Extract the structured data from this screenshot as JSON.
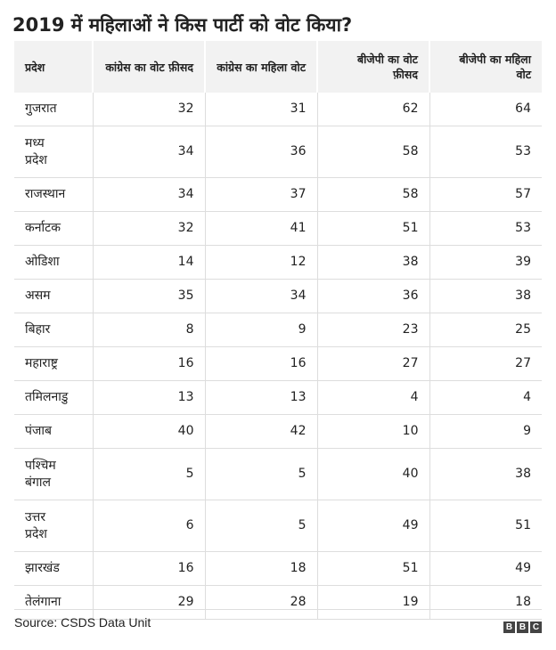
{
  "title": "2019 में महिलाओं ने किस पार्टी को वोट किया?",
  "source": "Source: CSDS Data Unit",
  "logo": [
    "B",
    "B",
    "C"
  ],
  "chart_data": {
    "type": "table",
    "columns": [
      "प्रदेश",
      "कांग्रेस का वोट फ़ीसद",
      "कांग्रेस का महिला वोट",
      "बीजेपी का वोट फ़ीसद",
      "बीजेपी का महिला वोट"
    ],
    "rows": [
      {
        "state": "गुजरात",
        "cols": [
          "32",
          "31",
          "62",
          "64"
        ]
      },
      {
        "state": "मध्य प्रदेश",
        "cols": [
          "34",
          "36",
          "58",
          "53"
        ]
      },
      {
        "state": "राजस्थान",
        "cols": [
          "34",
          "37",
          "58",
          "57"
        ]
      },
      {
        "state": "कर्नाटक",
        "cols": [
          "32",
          "41",
          "51",
          "53"
        ]
      },
      {
        "state": "ओडिशा",
        "cols": [
          "14",
          "12",
          "38",
          "39"
        ]
      },
      {
        "state": "असम",
        "cols": [
          "35",
          "34",
          "36",
          "38"
        ]
      },
      {
        "state": "बिहार",
        "cols": [
          "8",
          "9",
          "23",
          "25"
        ]
      },
      {
        "state": "महाराष्ट्र",
        "cols": [
          "16",
          "16",
          "27",
          "27"
        ]
      },
      {
        "state": "तमिलनाडु",
        "cols": [
          "13",
          "13",
          "4",
          "4"
        ]
      },
      {
        "state": "पंजाब",
        "cols": [
          "40",
          "42",
          "10",
          "9"
        ]
      },
      {
        "state": "पश्चिम बंगाल",
        "cols": [
          "5",
          "5",
          "40",
          "38"
        ]
      },
      {
        "state": "उत्तर प्रदेश",
        "cols": [
          "6",
          "5",
          "49",
          "51"
        ]
      },
      {
        "state": "झारखंड",
        "cols": [
          "16",
          "18",
          "51",
          "49"
        ]
      },
      {
        "state": "तेलंगाना",
        "cols": [
          "29",
          "28",
          "19",
          "18"
        ]
      }
    ]
  }
}
